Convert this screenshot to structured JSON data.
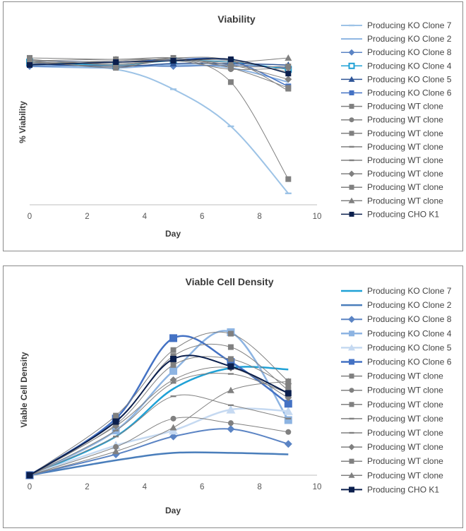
{
  "chart_data": [
    {
      "type": "line",
      "title": "Viability",
      "xlabel": "Day",
      "ylabel": "% Viability",
      "xlim": [
        0,
        10
      ],
      "ylim": [
        0,
        100
      ],
      "xticks": [
        0,
        2,
        4,
        6,
        8,
        10
      ],
      "grid": false,
      "legend_position": "right",
      "series": [
        {
          "name": "Producing KO Clone 7",
          "color": "#9dc3e6",
          "width": 2,
          "marker": "dash",
          "x": [
            0,
            3,
            5,
            7,
            9
          ],
          "y": [
            98,
            95,
            81,
            55,
            8
          ]
        },
        {
          "name": "Producing KO Clone 2",
          "color": "#8db4e2",
          "width": 2,
          "marker": "none",
          "x": [
            0,
            3,
            5,
            7,
            9
          ],
          "y": [
            97,
            96,
            98,
            96,
            86
          ]
        },
        {
          "name": "Producing KO Clone 8",
          "color": "#5b84c4",
          "width": 1.5,
          "marker": "diamond",
          "x": [
            0,
            3,
            5,
            7,
            9
          ],
          "y": [
            97,
            98,
            97,
            98,
            96
          ]
        },
        {
          "name": "Producing KO Clone 4",
          "color": "#1fa1d6",
          "width": 1.5,
          "marker": "square-open",
          "x": [
            0,
            3,
            5,
            7,
            9
          ],
          "y": [
            100,
            98,
            101,
            100,
            95
          ]
        },
        {
          "name": "Producing KO Clone 5",
          "color": "#2f5597",
          "width": 1.5,
          "marker": "triangle",
          "x": [
            0,
            3,
            5,
            7,
            9
          ],
          "y": [
            99,
            97,
            99,
            99,
            98
          ]
        },
        {
          "name": "Producing KO Clone 6",
          "color": "#4472c4",
          "width": 1.5,
          "marker": "square",
          "x": [
            0,
            3,
            5,
            7,
            9
          ],
          "y": [
            101,
            100,
            102,
            101,
            83
          ]
        },
        {
          "name": "Producing WT clone",
          "color": "#808080",
          "width": 1,
          "marker": "square",
          "x": [
            0,
            3,
            5,
            7,
            9
          ],
          "y": [
            101,
            96,
            102,
            86,
            18
          ]
        },
        {
          "name": "Producing WT clone",
          "color": "#808080",
          "width": 1,
          "marker": "circle",
          "x": [
            0,
            3,
            5,
            7,
            9
          ],
          "y": [
            100,
            97,
            101,
            95,
            96
          ]
        },
        {
          "name": "Producing WT clone",
          "color": "#808080",
          "width": 1,
          "marker": "square",
          "x": [
            0,
            3,
            5,
            7,
            9
          ],
          "y": [
            102,
            98,
            102,
            97,
            97
          ]
        },
        {
          "name": "Producing WT clone",
          "color": "#808080",
          "width": 1,
          "marker": "dash",
          "x": [
            0,
            3,
            5,
            7,
            9
          ],
          "y": [
            100,
            99,
            101,
            101,
            93
          ]
        },
        {
          "name": "Producing WT clone",
          "color": "#808080",
          "width": 1,
          "marker": "dash",
          "x": [
            0,
            3,
            5,
            7,
            9
          ],
          "y": [
            101,
            100,
            103,
            101,
            80
          ]
        },
        {
          "name": "Producing WT clone",
          "color": "#808080",
          "width": 1,
          "marker": "diamond",
          "x": [
            0,
            3,
            5,
            7,
            9
          ],
          "y": [
            99,
            101,
            102,
            98,
            88
          ]
        },
        {
          "name": "Producing WT clone",
          "color": "#808080",
          "width": 1,
          "marker": "square",
          "x": [
            0,
            3,
            5,
            7,
            9
          ],
          "y": [
            103,
            102,
            103,
            96,
            82
          ]
        },
        {
          "name": "Producing WT clone",
          "color": "#808080",
          "width": 1,
          "marker": "triangle",
          "x": [
            0,
            3,
            5,
            7,
            9
          ],
          "y": [
            101,
            102,
            102,
            100,
            103
          ]
        },
        {
          "name": "Producing CHO K1",
          "color": "#0b1f4d",
          "width": 1.5,
          "marker": "square",
          "x": [
            0,
            3,
            5,
            7,
            9
          ],
          "y": [
            98,
            100,
            101,
            102,
            92
          ]
        }
      ]
    },
    {
      "type": "line",
      "title": "Viable Cell Density",
      "xlabel": "Day",
      "ylabel": "Viable Cell Density",
      "xlim": [
        0,
        10
      ],
      "ylim": [
        0,
        100
      ],
      "xticks": [
        0,
        2,
        4,
        6,
        8,
        10
      ],
      "grid": false,
      "legend_position": "right",
      "series": [
        {
          "name": "Producing KO Clone 7",
          "color": "#1fa1d6",
          "width": 2.5,
          "marker": "none",
          "x": [
            0,
            3,
            5,
            7,
            9
          ],
          "y": [
            0,
            26,
            58,
            72,
            71
          ]
        },
        {
          "name": "Producing KO Clone 2",
          "color": "#4a7ebb",
          "width": 2.5,
          "marker": "none",
          "x": [
            0,
            3,
            5,
            7,
            9
          ],
          "y": [
            0,
            10,
            15,
            15,
            14
          ]
        },
        {
          "name": "Producing KO Clone 8",
          "color": "#5b84c4",
          "width": 2,
          "marker": "diamond",
          "x": [
            0,
            3,
            5,
            7,
            9
          ],
          "y": [
            0,
            14,
            26,
            31,
            21
          ]
        },
        {
          "name": "Producing KO Clone 4",
          "color": "#8db4e2",
          "width": 2.5,
          "marker": "square",
          "x": [
            0,
            3,
            5,
            7,
            9
          ],
          "y": [
            0,
            30,
            70,
            96,
            37
          ]
        },
        {
          "name": "Producing KO Clone 5",
          "color": "#c5d9f1",
          "width": 2.5,
          "marker": "triangle",
          "x": [
            0,
            3,
            5,
            7,
            9
          ],
          "y": [
            0,
            20,
            30,
            44,
            43
          ]
        },
        {
          "name": "Producing KO Clone 6",
          "color": "#4472c4",
          "width": 2.5,
          "marker": "square",
          "x": [
            0,
            3,
            5,
            7,
            9
          ],
          "y": [
            0,
            38,
            92,
            76,
            48
          ]
        },
        {
          "name": "Producing WT clone",
          "color": "#808080",
          "width": 1,
          "marker": "square",
          "x": [
            0,
            3,
            5,
            7,
            9
          ],
          "y": [
            0,
            40,
            84,
            95,
            63
          ]
        },
        {
          "name": "Producing WT clone",
          "color": "#808080",
          "width": 1,
          "marker": "circle",
          "x": [
            0,
            3,
            5,
            7,
            9
          ],
          "y": [
            0,
            19,
            38,
            35,
            29
          ]
        },
        {
          "name": "Producing WT clone",
          "color": "#808080",
          "width": 1,
          "marker": "square",
          "x": [
            0,
            3,
            5,
            7,
            9
          ],
          "y": [
            0,
            36,
            80,
            86,
            57
          ]
        },
        {
          "name": "Producing WT clone",
          "color": "#808080",
          "width": 1,
          "marker": "dash",
          "x": [
            0,
            3,
            5,
            7,
            9
          ],
          "y": [
            0,
            30,
            62,
            68,
            55
          ]
        },
        {
          "name": "Producing WT clone",
          "color": "#808080",
          "width": 1,
          "marker": "dash",
          "x": [
            0,
            3,
            5,
            7,
            9
          ],
          "y": [
            0,
            26,
            53,
            47,
            38
          ]
        },
        {
          "name": "Producing WT clone",
          "color": "#808080",
          "width": 1,
          "marker": "diamond",
          "x": [
            0,
            3,
            5,
            7,
            9
          ],
          "y": [
            0,
            33,
            64,
            72,
            52
          ]
        },
        {
          "name": "Producing WT clone",
          "color": "#808080",
          "width": 1,
          "marker": "square",
          "x": [
            0,
            3,
            5,
            7,
            9
          ],
          "y": [
            0,
            34,
            74,
            78,
            60
          ]
        },
        {
          "name": "Producing WT clone",
          "color": "#808080",
          "width": 1,
          "marker": "triangle",
          "x": [
            0,
            3,
            5,
            7,
            9
          ],
          "y": [
            0,
            16,
            32,
            57,
            63
          ]
        },
        {
          "name": "Producing CHO K1",
          "color": "#0b1f4d",
          "width": 2,
          "marker": "square",
          "x": [
            0,
            3,
            5,
            7,
            9
          ],
          "y": [
            0,
            36,
            78,
            73,
            55
          ]
        }
      ]
    }
  ]
}
